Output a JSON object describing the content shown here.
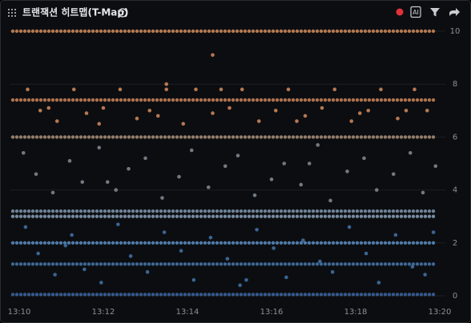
{
  "chart_data": {
    "type": "scatter",
    "title": "트랜잭션 히트맵(T-Map)",
    "xlim": [
      10,
      20
    ],
    "xticks": [
      {
        "value": 10,
        "label": "13:10"
      },
      {
        "value": 12,
        "label": "13:12"
      },
      {
        "value": 14,
        "label": "13:14"
      },
      {
        "value": 16,
        "label": "13:16"
      },
      {
        "value": 18,
        "label": "13:18"
      },
      {
        "value": 20,
        "label": "13:20"
      }
    ],
    "ylim": [
      0,
      10
    ],
    "yticks": [
      0,
      2,
      4,
      6,
      8,
      10
    ],
    "grid": true,
    "bands": [
      {
        "y": 10,
        "x": [
          10,
          19.9
        ],
        "color": "#d08a5c"
      },
      {
        "y": 7.4,
        "x": [
          10,
          19.9
        ],
        "color": "#c9845a"
      },
      {
        "y": 6,
        "x": [
          10,
          19.9
        ],
        "color": "#a99079"
      },
      {
        "y": 3.2,
        "x": [
          10,
          19.9
        ],
        "color": "#7e96ad"
      },
      {
        "y": 3,
        "x": [
          10,
          19.9
        ],
        "color": "#8aa2b8"
      },
      {
        "y": 2,
        "x": [
          10,
          19.9
        ],
        "color": "#5a8cc0"
      },
      {
        "y": 1.2,
        "x": [
          10,
          19.9
        ],
        "color": "#4677ab"
      },
      {
        "y": 0.05,
        "x": [
          10,
          19.9
        ],
        "color": "#3d66a0"
      }
    ],
    "series": [
      {
        "color": "#c9845a",
        "x": [
          10.2,
          10.5,
          10.9,
          11.3,
          11.6,
          12.0,
          12.4,
          12.8,
          13.1,
          13.5,
          13.9,
          14.2,
          14.6,
          15.0,
          15.3,
          15.7,
          16.1,
          16.4,
          16.8,
          17.2,
          17.5,
          17.9,
          18.3,
          18.6,
          19.0,
          19.4,
          19.7,
          10.7,
          11.9,
          13.3,
          14.8,
          16.6,
          18.1,
          19.2,
          13.5,
          14.6
        ],
        "values": [
          7.8,
          7.0,
          6.6,
          7.8,
          6.9,
          7.1,
          7.8,
          6.7,
          7.0,
          7.8,
          6.5,
          7.8,
          6.9,
          7.1,
          7.8,
          6.6,
          7.0,
          7.8,
          6.8,
          7.1,
          7.8,
          6.6,
          7.0,
          7.8,
          6.7,
          7.8,
          7.0,
          7.1,
          6.5,
          6.8,
          7.8,
          6.6,
          6.9,
          7.0,
          8.0,
          9.1
        ]
      },
      {
        "color": "#7d8590",
        "x": [
          10.1,
          10.4,
          10.8,
          11.2,
          11.5,
          11.9,
          12.3,
          12.6,
          13.0,
          13.4,
          13.8,
          14.1,
          14.5,
          14.9,
          15.2,
          15.6,
          16.0,
          16.3,
          16.7,
          17.1,
          17.4,
          17.8,
          18.2,
          18.5,
          18.9,
          19.3,
          19.6,
          19.9,
          12.1,
          16.9
        ],
        "values": [
          5.4,
          4.6,
          3.9,
          5.1,
          4.3,
          5.6,
          4.0,
          4.8,
          5.2,
          3.7,
          4.5,
          5.5,
          4.1,
          4.9,
          5.3,
          3.8,
          4.4,
          5.0,
          4.2,
          5.7,
          3.6,
          4.7,
          5.2,
          4.0,
          4.6,
          5.4,
          3.9,
          4.9,
          4.3,
          5.0
        ]
      },
      {
        "color": "#3f6fa3",
        "x": [
          10.15,
          10.45,
          10.85,
          11.25,
          11.55,
          11.95,
          12.35,
          12.65,
          13.05,
          13.45,
          13.85,
          14.15,
          14.55,
          14.95,
          15.25,
          15.65,
          16.05,
          16.35,
          16.75,
          17.15,
          17.45,
          17.85,
          18.25,
          18.55,
          18.95,
          19.35,
          19.65,
          19.85,
          11.1,
          15.4
        ],
        "values": [
          2.6,
          1.6,
          0.8,
          2.3,
          1.0,
          0.5,
          2.7,
          1.5,
          0.9,
          2.4,
          1.7,
          0.6,
          2.2,
          1.4,
          0.4,
          2.5,
          1.8,
          0.7,
          2.1,
          1.3,
          0.9,
          2.6,
          1.6,
          0.5,
          2.3,
          1.1,
          0.8,
          2.4,
          1.9,
          0.6
        ]
      }
    ]
  }
}
